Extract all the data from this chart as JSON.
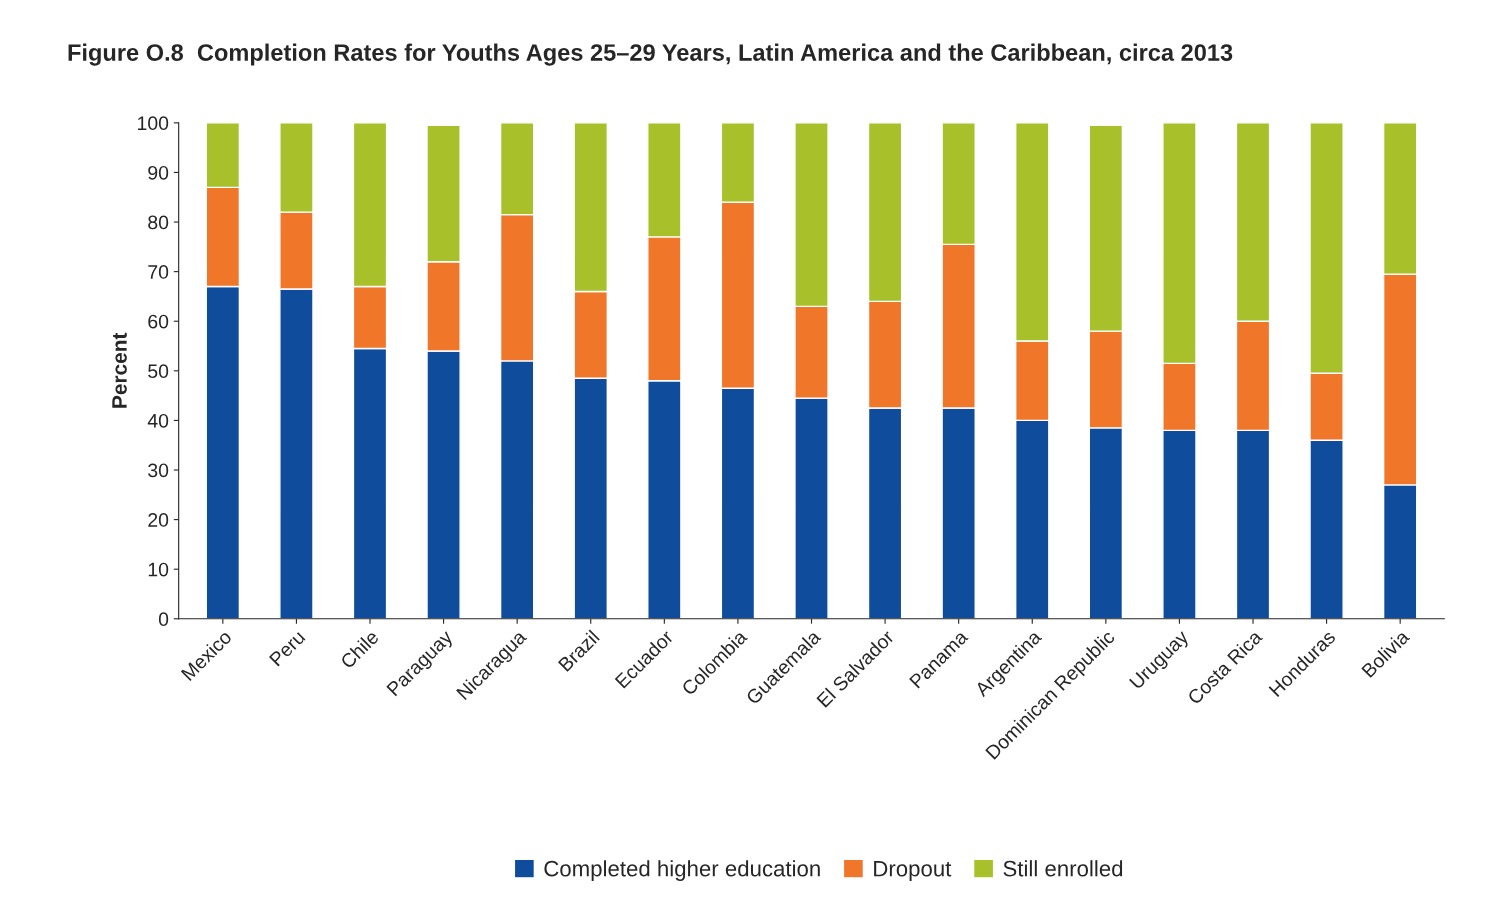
{
  "chart_data": {
    "type": "bar",
    "title": "Figure O.8  Completion Rates for Youths Ages 25–29 Years, Latin America and the Caribbean, circa 2013",
    "ylabel": "Percent",
    "categories": [
      "Mexico",
      "Peru",
      "Chile",
      "Paraguay",
      "Nicaragua",
      "Brazil",
      "Ecuador",
      "Colombia",
      "Guatemala",
      "El Salvador",
      "Panama",
      "Argentina",
      "Dominican Republic",
      "Uruguay",
      "Costa Rica",
      "Honduras",
      "Bolivia"
    ],
    "stacked": true,
    "series": [
      {
        "name": "Completed higher education",
        "color": "#0f4c9c",
        "values": [
          67,
          66.5,
          54.5,
          54,
          52,
          48.5,
          48,
          46.5,
          44.5,
          42.5,
          42.5,
          40,
          38.5,
          38,
          38,
          36,
          27
        ]
      },
      {
        "name": "Dropout",
        "color": "#f0762a",
        "values": [
          20,
          15.5,
          12.5,
          18,
          29.5,
          17.5,
          29,
          37.5,
          18.5,
          21.5,
          33,
          16,
          19.5,
          13.5,
          22,
          13.5,
          42.5
        ]
      },
      {
        "name": "Still enrolled",
        "color": "#a8c02a",
        "values": [
          13,
          18,
          33,
          27.5,
          18.5,
          34,
          23,
          16,
          37,
          36,
          24.5,
          44,
          41.5,
          48.5,
          40,
          50.5,
          30.5
        ]
      }
    ],
    "ylim": [
      0,
      100
    ],
    "yticks": [
      0,
      10,
      20,
      30,
      40,
      50,
      60,
      70,
      80,
      90,
      100
    ],
    "grid": false,
    "legend": "bottom"
  }
}
